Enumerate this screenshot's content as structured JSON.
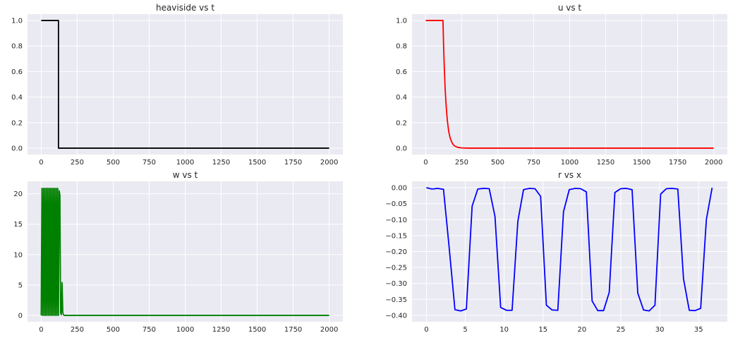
{
  "chart_data": [
    {
      "type": "line",
      "title": "heaviside vs t",
      "xlabel": "",
      "ylabel": "",
      "xlim": [
        -95,
        2095
      ],
      "ylim": [
        -0.05,
        1.05
      ],
      "xticks": [
        0,
        250,
        500,
        750,
        1000,
        1250,
        1500,
        1750,
        2000
      ],
      "xtick_labels": [
        "0",
        "250",
        "500",
        "750",
        "1000",
        "1250",
        "1500",
        "1750",
        "2000"
      ],
      "yticks": [
        0.0,
        0.2,
        0.4,
        0.6,
        0.8,
        1.0
      ],
      "ytick_labels": [
        "0.0",
        "0.2",
        "0.4",
        "0.6",
        "0.8",
        "1.0"
      ],
      "grid": true,
      "color": "#000000",
      "series": [
        {
          "x": [
            0,
            120,
            120,
            2000
          ],
          "y": [
            1,
            1,
            0,
            0
          ]
        }
      ]
    },
    {
      "type": "line",
      "title": "u vs t",
      "xlabel": "",
      "ylabel": "",
      "xlim": [
        -95,
        2095
      ],
      "ylim": [
        -0.05,
        1.05
      ],
      "xticks": [
        0,
        250,
        500,
        750,
        1000,
        1250,
        1500,
        1750,
        2000
      ],
      "xtick_labels": [
        "0",
        "250",
        "500",
        "750",
        "1000",
        "1250",
        "1500",
        "1750",
        "2000"
      ],
      "yticks": [
        0.0,
        0.2,
        0.4,
        0.6,
        0.8,
        1.0
      ],
      "ytick_labels": [
        "0.0",
        "0.2",
        "0.4",
        "0.6",
        "0.8",
        "1.0"
      ],
      "grid": true,
      "color": "#ff0000",
      "series": [
        {
          "x": [
            0,
            120,
            125,
            130,
            135,
            140,
            145,
            150,
            160,
            170,
            180,
            190,
            200,
            220,
            250,
            300,
            2000
          ],
          "y": [
            1,
            1,
            0.78,
            0.61,
            0.47,
            0.37,
            0.29,
            0.22,
            0.13,
            0.08,
            0.05,
            0.03,
            0.018,
            0.007,
            0.002,
            0,
            0
          ]
        }
      ]
    },
    {
      "type": "line",
      "title": "w vs t",
      "xlabel": "",
      "ylabel": "",
      "xlim": [
        -95,
        2095
      ],
      "ylim": [
        -1.05,
        22.05
      ],
      "xticks": [
        0,
        250,
        500,
        750,
        1000,
        1250,
        1500,
        1750,
        2000
      ],
      "xtick_labels": [
        "0",
        "250",
        "500",
        "750",
        "1000",
        "1250",
        "1500",
        "1750",
        "2000"
      ],
      "yticks": [
        0,
        5,
        10,
        15,
        20
      ],
      "ytick_labels": [
        "0",
        "5",
        "10",
        "15",
        "20"
      ],
      "grid": true,
      "color": "#008000",
      "series": [
        {
          "x": [
            0,
            5,
            10,
            15,
            20,
            25,
            30,
            35,
            40,
            45,
            50,
            55,
            60,
            65,
            70,
            75,
            80,
            85,
            90,
            95,
            100,
            105,
            110,
            115,
            120,
            125,
            130,
            135,
            140,
            145,
            150,
            155,
            160,
            170,
            2000
          ],
          "y": [
            0,
            20.9,
            0,
            20.9,
            0,
            20.9,
            0,
            20.9,
            0,
            20.9,
            0,
            20.9,
            0,
            20.9,
            0,
            20.9,
            0,
            20.9,
            0,
            20.9,
            0,
            20.9,
            0,
            20.9,
            0,
            20.5,
            19.8,
            0.4,
            0.1,
            5.4,
            0.5,
            0.1,
            0,
            0,
            0
          ]
        }
      ]
    },
    {
      "type": "line",
      "title": "r vs x",
      "xlabel": "",
      "ylabel": "",
      "xlim": [
        -1.85,
        38.7
      ],
      "ylim": [
        -0.42,
        0.02
      ],
      "xticks": [
        0,
        5,
        10,
        15,
        20,
        25,
        30,
        35
      ],
      "xtick_labels": [
        "0",
        "5",
        "10",
        "15",
        "20",
        "25",
        "30",
        "35"
      ],
      "yticks": [
        0.0,
        -0.05,
        -0.1,
        -0.15,
        -0.2,
        -0.25,
        -0.3,
        -0.35,
        -0.4
      ],
      "ytick_labels": [
        "0.00",
        "−0.05",
        "−0.10",
        "−0.15",
        "−0.20",
        "−0.25",
        "−0.30",
        "−0.35",
        "−0.40"
      ],
      "grid": true,
      "color": "#0000ff",
      "series": [
        {
          "x": [
            0,
            0.73,
            1.47,
            2.2,
            2.94,
            3.67,
            4.41,
            5.14,
            5.88,
            6.61,
            7.35,
            8.08,
            8.82,
            9.55,
            10.29,
            11.02,
            11.76,
            12.49,
            13.22,
            13.96,
            14.69,
            15.43,
            16.16,
            16.9,
            17.63,
            18.37,
            19.1,
            19.84,
            20.57,
            21.31,
            22.04,
            22.78,
            23.51,
            24.24,
            24.98,
            25.71,
            26.45,
            27.18,
            27.92,
            28.65,
            29.39,
            30.12,
            30.86,
            31.59,
            32.33,
            33.06,
            33.8,
            34.53,
            35.27,
            36.0,
            36.74
          ],
          "y": [
            0.0,
            -0.004,
            -0.002,
            -0.005,
            -0.19,
            -0.382,
            -0.386,
            -0.38,
            -0.058,
            -0.004,
            -0.002,
            -0.003,
            -0.09,
            -0.375,
            -0.384,
            -0.384,
            -0.105,
            -0.006,
            -0.002,
            -0.003,
            -0.027,
            -0.368,
            -0.383,
            -0.384,
            -0.075,
            -0.006,
            -0.002,
            -0.003,
            -0.013,
            -0.355,
            -0.385,
            -0.385,
            -0.328,
            -0.015,
            -0.003,
            -0.002,
            -0.006,
            -0.33,
            -0.383,
            -0.386,
            -0.368,
            -0.02,
            -0.003,
            -0.002,
            -0.004,
            -0.285,
            -0.384,
            -0.385,
            -0.378,
            -0.1,
            0.0
          ]
        }
      ]
    }
  ]
}
